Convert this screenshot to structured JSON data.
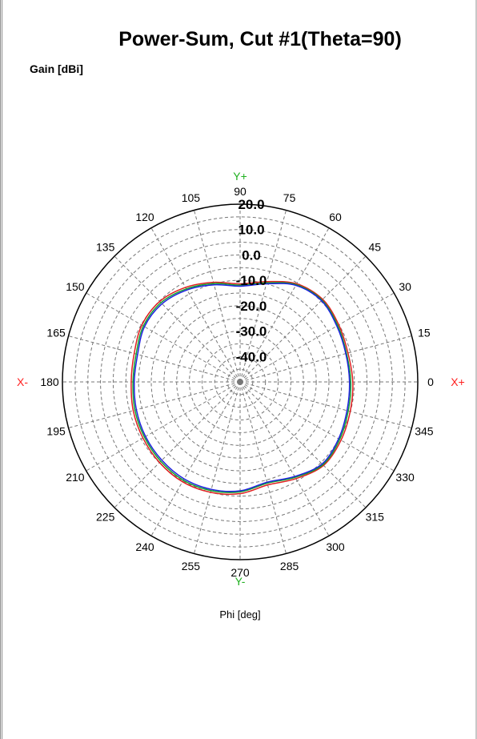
{
  "chart_data": {
    "type": "polar",
    "title": "Power-Sum, Cut #1(Theta=90)",
    "ylabel": "Gain [dBi]",
    "xlabel": "Phi [deg]",
    "rlim": [
      -50,
      20
    ],
    "radial_ticks": [
      "20.0",
      "10.0",
      "0.0",
      "-10.0",
      "-20.0",
      "-30.0",
      "-40.0"
    ],
    "angle_ticks": [
      "0",
      "15",
      "30",
      "45",
      "60",
      "75",
      "90",
      "105",
      "120",
      "135",
      "150",
      "165",
      "180",
      "195",
      "210",
      "225",
      "240",
      "255",
      "270",
      "285",
      "300",
      "315",
      "330",
      "345"
    ],
    "axis_names": {
      "x_plus": "X+",
      "x_minus": "X-",
      "y_plus": "Y+",
      "y_minus": "Y-"
    },
    "grid": true,
    "colors": {
      "x_axis": "#ff2020",
      "y_axis": "#20b020"
    },
    "phi": [
      0,
      15,
      30,
      45,
      60,
      75,
      90,
      105,
      120,
      135,
      150,
      165,
      180,
      195,
      210,
      225,
      240,
      255,
      270,
      285,
      300,
      315,
      330,
      345
    ],
    "series": [
      {
        "color": "#e02020",
        "values": [
          -5.6,
          -6.0,
          -5.1,
          -4.0,
          -5.4,
          -9.1,
          -11.4,
          -9.4,
          -7.0,
          -5.2,
          -5.3,
          -6.8,
          -7.1,
          -6.4,
          -5.8,
          -5.1,
          -4.6,
          -5.0,
          -6.0,
          -8.0,
          -6.0,
          -3.5,
          -4.1,
          -5.1
        ]
      },
      {
        "color": "#10a030",
        "values": [
          -6.4,
          -6.6,
          -5.6,
          -4.4,
          -5.8,
          -9.6,
          -11.9,
          -9.9,
          -7.7,
          -5.9,
          -6.0,
          -7.6,
          -7.8,
          -7.1,
          -6.5,
          -5.8,
          -5.3,
          -5.7,
          -6.7,
          -8.7,
          -6.6,
          -3.9,
          -4.7,
          -5.9
        ]
      },
      {
        "color": "#2020e0",
        "values": [
          -6.9,
          -6.9,
          -6.0,
          -4.7,
          -6.1,
          -10.0,
          -12.3,
          -10.4,
          -8.2,
          -6.5,
          -6.5,
          -8.2,
          -8.3,
          -7.7,
          -7.0,
          -6.4,
          -5.9,
          -6.2,
          -7.1,
          -9.1,
          -7.0,
          -4.3,
          -5.2,
          -6.4
        ]
      }
    ]
  }
}
